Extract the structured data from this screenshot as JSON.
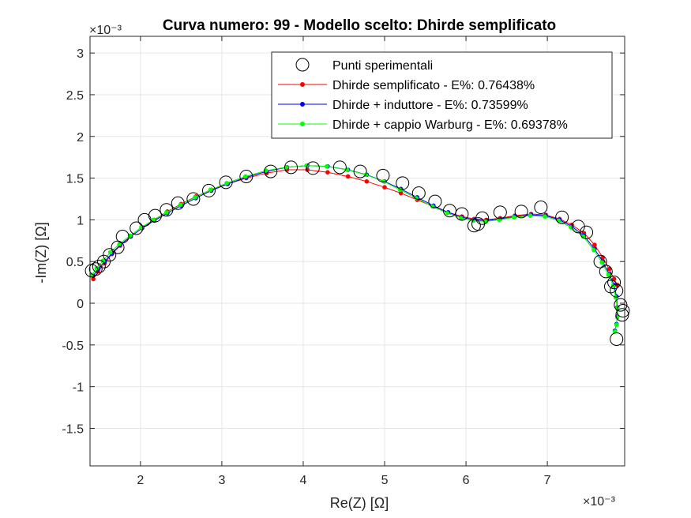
{
  "chart_data": {
    "type": "line",
    "title": "Curva numero: 99 - Modello scelto: Dhirde semplificato",
    "xlabel": "Re(Z) [Ω]",
    "ylabel": "-Im(Z) [Ω]",
    "x_exponent": "×10⁻³",
    "y_exponent": "×10⁻³",
    "xlim": [
      1.38,
      7.95
    ],
    "ylim": [
      -1.95,
      3.2
    ],
    "xticks": [
      "2",
      "3",
      "4",
      "5",
      "6",
      "7"
    ],
    "yticks": [
      "3",
      "2.5",
      "2",
      "1.5",
      "1",
      "0.5",
      "0",
      "-0.5",
      "-1",
      "-1.5"
    ],
    "grid": true,
    "legend_position": "top-right",
    "legend": [
      "Punti sperimentali",
      "Dhirde semplificato - E%: 0.76438%",
      "Dhirde + induttore - E%: 0.73599%",
      "Dhirde + cappio Warburg - E%: 0.69378%"
    ],
    "colors": {
      "experimental": "#000000",
      "dhirde_semplificato": "#ff0000",
      "dhirde_induttore": "#0000ff",
      "dhirde_warburg": "#00ff00"
    },
    "series": [
      {
        "name": "Punti sperimentali",
        "marker": "open-circle",
        "x": [
          1.4,
          1.45,
          1.49,
          1.55,
          1.62,
          1.72,
          1.78,
          1.95,
          2.05,
          2.18,
          2.32,
          2.46,
          2.65,
          2.84,
          3.05,
          3.3,
          3.6,
          3.85,
          4.12,
          4.45,
          4.7,
          4.98,
          5.22,
          5.42,
          5.62,
          5.8,
          5.95,
          6.1,
          6.15,
          6.2,
          6.42,
          6.68,
          6.92,
          7.18,
          7.38,
          7.48,
          7.65,
          7.72,
          7.78,
          7.82,
          7.85,
          7.9,
          7.93,
          7.92,
          7.85
        ],
        "y": [
          0.39,
          0.41,
          0.44,
          0.5,
          0.58,
          0.67,
          0.8,
          0.9,
          1.0,
          1.05,
          1.12,
          1.2,
          1.25,
          1.35,
          1.45,
          1.52,
          1.58,
          1.63,
          1.62,
          1.63,
          1.58,
          1.53,
          1.44,
          1.32,
          1.22,
          1.11,
          1.07,
          0.93,
          0.95,
          1.02,
          1.09,
          1.1,
          1.15,
          1.03,
          0.92,
          0.85,
          0.5,
          0.38,
          0.2,
          0.25,
          0.15,
          -0.02,
          -0.09,
          -0.14,
          -0.43
        ]
      },
      {
        "name": "Dhirde semplificato - E%: 0.76438%",
        "x": [
          1.42,
          1.48,
          1.56,
          1.65,
          1.75,
          1.88,
          2.02,
          2.17,
          2.33,
          2.5,
          2.68,
          2.87,
          3.07,
          3.3,
          3.55,
          3.8,
          4.05,
          4.3,
          4.55,
          4.78,
          5.0,
          5.2,
          5.4,
          5.6,
          5.78,
          5.95,
          6.1,
          6.25,
          6.42,
          6.6,
          6.8,
          6.98,
          7.15,
          7.3,
          7.45,
          7.58,
          7.68,
          7.76,
          7.82,
          7.86
        ],
        "y": [
          0.29,
          0.38,
          0.48,
          0.59,
          0.69,
          0.8,
          0.9,
          1.0,
          1.1,
          1.19,
          1.28,
          1.36,
          1.43,
          1.5,
          1.56,
          1.6,
          1.6,
          1.57,
          1.52,
          1.46,
          1.39,
          1.32,
          1.24,
          1.16,
          1.09,
          1.04,
          1.01,
          1.0,
          1.02,
          1.05,
          1.07,
          1.06,
          1.01,
          0.94,
          0.84,
          0.7,
          0.55,
          0.41,
          0.29,
          0.22
        ]
      },
      {
        "name": "Dhirde + induttore - E%: 0.73599%",
        "x": [
          1.42,
          1.48,
          1.56,
          1.65,
          1.75,
          1.88,
          2.02,
          2.17,
          2.33,
          2.5,
          2.68,
          2.87,
          3.07,
          3.3,
          3.55,
          3.8,
          4.05,
          4.3,
          4.55,
          4.78,
          5.0,
          5.2,
          5.4,
          5.6,
          5.78,
          5.95,
          6.1,
          6.25,
          6.42,
          6.6,
          6.8,
          6.98,
          7.15,
          7.3,
          7.45,
          7.58,
          7.68,
          7.76,
          7.82,
          7.85,
          7.86,
          7.86,
          7.85,
          7.83
        ],
        "y": [
          0.33,
          0.41,
          0.5,
          0.6,
          0.7,
          0.8,
          0.9,
          0.99,
          1.08,
          1.17,
          1.26,
          1.35,
          1.43,
          1.51,
          1.58,
          1.63,
          1.65,
          1.64,
          1.6,
          1.54,
          1.46,
          1.37,
          1.27,
          1.17,
          1.09,
          1.03,
          1.0,
          0.99,
          1.01,
          1.04,
          1.06,
          1.05,
          1.0,
          0.92,
          0.81,
          0.65,
          0.5,
          0.35,
          0.22,
          0.08,
          -0.05,
          -0.16,
          -0.25,
          -0.33
        ]
      },
      {
        "name": "Dhirde + cappio Warburg - E%: 0.69378%",
        "x": [
          1.4,
          1.46,
          1.54,
          1.63,
          1.74,
          1.87,
          2.01,
          2.16,
          2.32,
          2.49,
          2.67,
          2.86,
          3.06,
          3.29,
          3.54,
          3.79,
          4.04,
          4.29,
          4.54,
          4.77,
          4.99,
          5.19,
          5.39,
          5.59,
          5.77,
          5.94,
          6.09,
          6.24,
          6.41,
          6.59,
          6.79,
          6.97,
          7.14,
          7.29,
          7.44,
          7.57,
          7.67,
          7.75,
          7.81,
          7.84,
          7.86,
          7.86,
          7.85,
          7.83
        ],
        "y": [
          0.34,
          0.42,
          0.51,
          0.61,
          0.71,
          0.81,
          0.91,
          1.0,
          1.09,
          1.18,
          1.27,
          1.36,
          1.44,
          1.52,
          1.59,
          1.63,
          1.65,
          1.64,
          1.6,
          1.54,
          1.46,
          1.36,
          1.26,
          1.16,
          1.08,
          1.02,
          0.99,
          0.98,
          1.0,
          1.03,
          1.05,
          1.04,
          0.99,
          0.91,
          0.8,
          0.64,
          0.49,
          0.34,
          0.21,
          0.07,
          -0.06,
          -0.17,
          -0.26,
          -0.34
        ]
      }
    ]
  }
}
